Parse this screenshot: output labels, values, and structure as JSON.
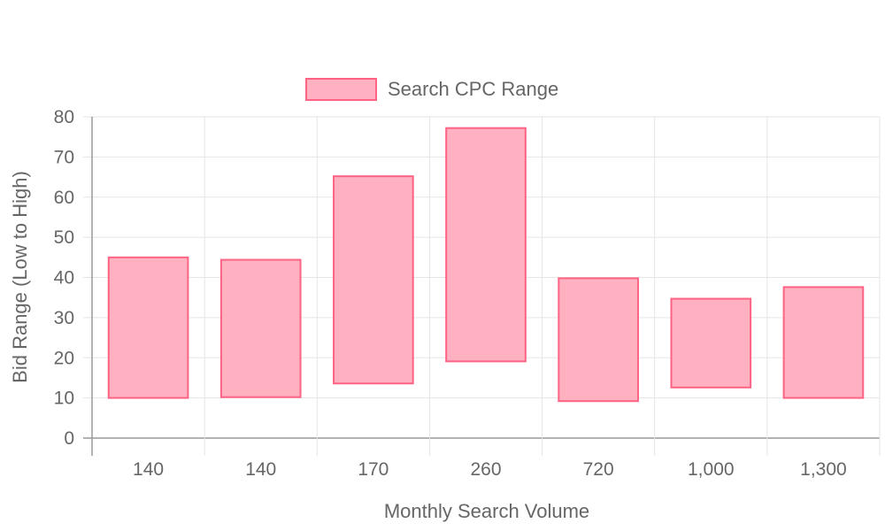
{
  "chart_data": {
    "type": "bar",
    "title": "",
    "xlabel": "Monthly Search Volume",
    "ylabel": "Bid Range (Low to High)",
    "categories": [
      "140",
      "140",
      "170",
      "260",
      "720",
      "1,000",
      "1,300"
    ],
    "series": [
      {
        "name": "Search CPC Range",
        "ranges": [
          [
            10,
            45
          ],
          [
            10.2,
            44.4
          ],
          [
            13.6,
            65.2
          ],
          [
            19.1,
            77.2
          ],
          [
            9.2,
            39.8
          ],
          [
            12.6,
            34.7
          ],
          [
            10,
            37.6
          ]
        ]
      }
    ],
    "ylim": [
      0,
      80
    ],
    "yticks": [
      "0",
      "10",
      "20",
      "30",
      "40",
      "50",
      "60",
      "70",
      "80"
    ],
    "grid": true,
    "legend_position": "top",
    "colors": {
      "bar_fill": "#ffb1c1",
      "bar_border": "#ff6384",
      "grid": "#e5e5e5",
      "axis": "#999999",
      "text": "#666666"
    }
  }
}
